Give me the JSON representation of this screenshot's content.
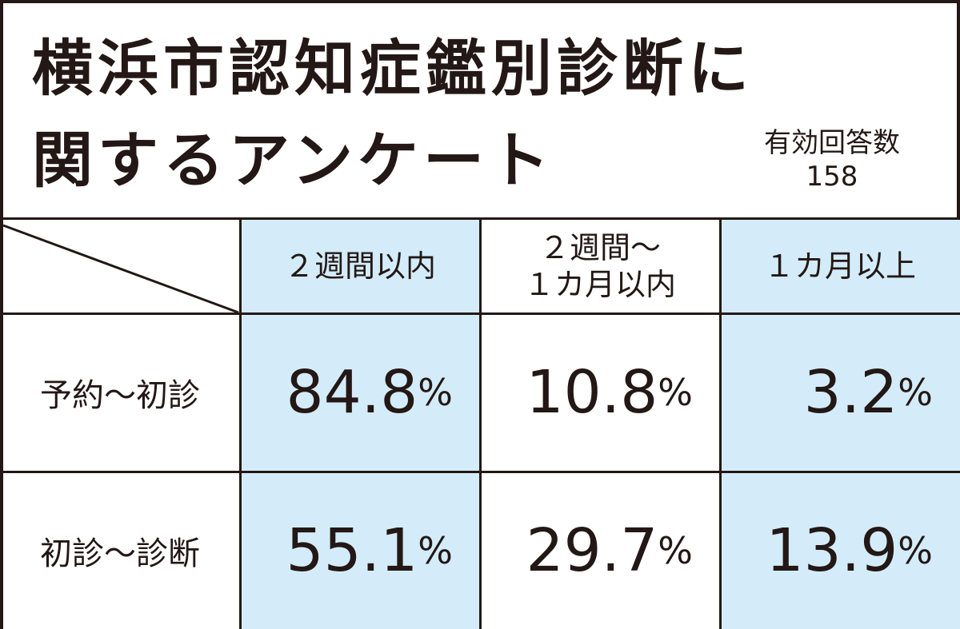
{
  "title": {
    "line1": "横浜市認知症鑑別診断に",
    "line2": "関するアンケート"
  },
  "responses": {
    "label": "有効回答数",
    "count": "158"
  },
  "colors": {
    "highlight": "#d4ecfa",
    "border": "#231815"
  },
  "chart_data": {
    "type": "table",
    "columns": [
      "２週間以内",
      "２週間～\n１カ月以内",
      "１カ月以上"
    ],
    "rows": [
      {
        "label": "予約～初診",
        "values": [
          "84.8",
          "10.8",
          "3.2"
        ]
      },
      {
        "label": "初診～診断",
        "values": [
          "55.1",
          "29.7",
          "13.9"
        ]
      }
    ],
    "unit": "%"
  }
}
